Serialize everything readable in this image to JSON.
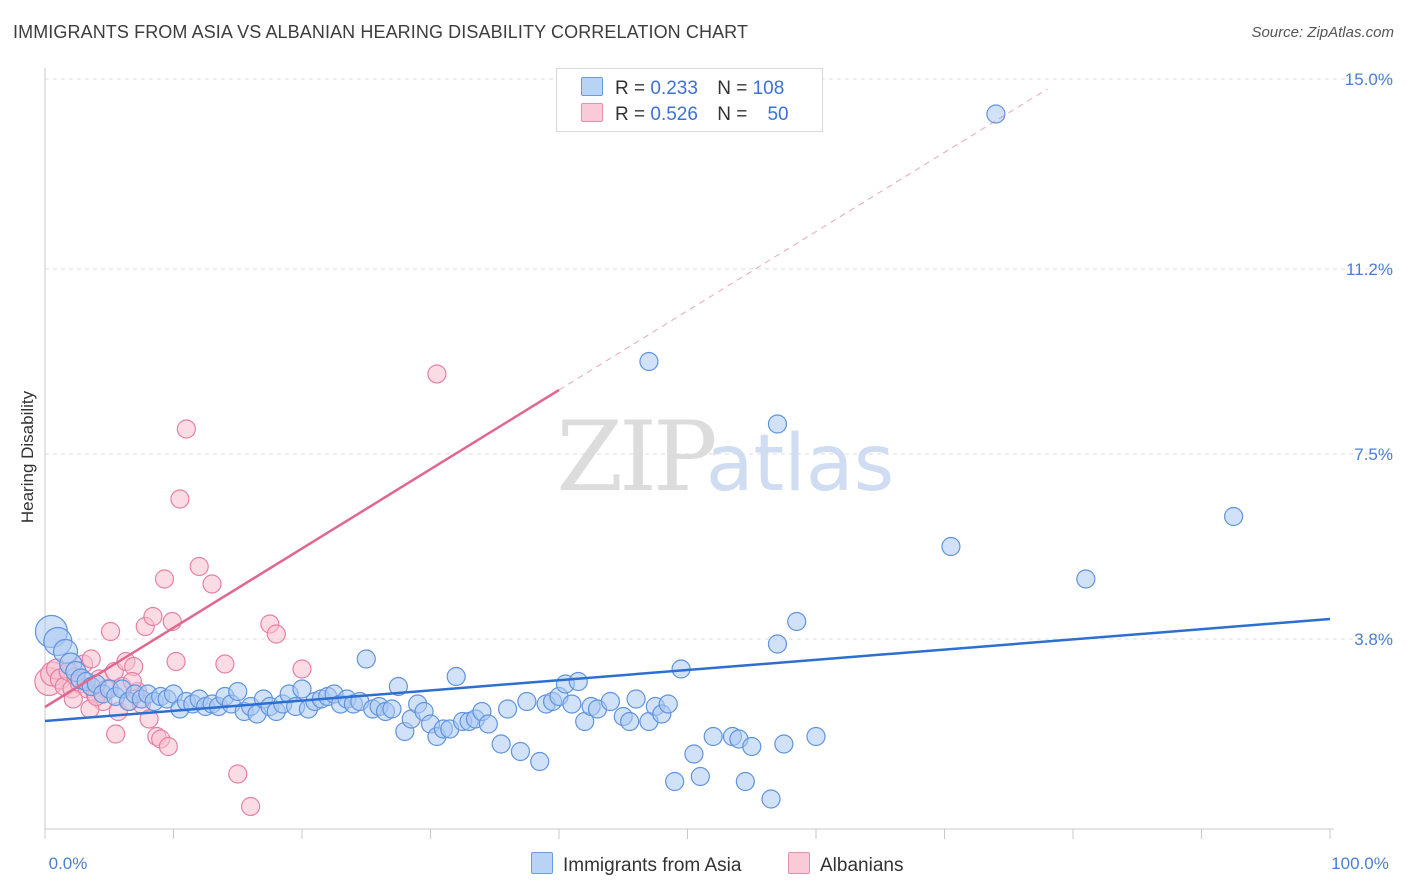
{
  "title": "IMMIGRANTS FROM ASIA VS ALBANIAN HEARING DISABILITY CORRELATION CHART",
  "source": "Source: ZipAtlas.com",
  "watermark": {
    "zip": "ZIP",
    "atlas": "atlas"
  },
  "legend": {
    "asia": {
      "r_label": "R =",
      "r_value": "0.233",
      "n_label": "N =",
      "n_value": "108"
    },
    "albanians": {
      "r_label": "R =",
      "r_value": "0.526",
      "n_label": "N =",
      "n_value": "50"
    }
  },
  "bottom_legend": {
    "asia": "Immigrants from Asia",
    "albanians": "Albanians"
  },
  "colors": {
    "asia_fill": "#a9c8f2",
    "asia_stroke": "#5f93dd",
    "asia_line": "#2c6fd0",
    "alb_fill": "#f7bfd0",
    "alb_stroke": "#e87fa3",
    "alb_line": "#e06890",
    "grid": "#dddddd",
    "tick_text": "#4a7fd0"
  },
  "chart_data": {
    "type": "scatter",
    "title": "IMMIGRANTS FROM ASIA VS ALBANIAN HEARING DISABILITY CORRELATION CHART",
    "xlabel": "",
    "ylabel": "Hearing Disability",
    "xlim": [
      0,
      100
    ],
    "ylim": [
      0,
      15.0
    ],
    "x_tick_labels": [
      "0.0%",
      "100.0%"
    ],
    "y_ticks": [
      3.8,
      7.5,
      11.2,
      15.0
    ],
    "y_tick_labels": [
      "3.8%",
      "7.5%",
      "11.2%",
      "15.0%"
    ],
    "grid": true,
    "legend_position": "top-center",
    "series": [
      {
        "name": "Immigrants from Asia",
        "r": 0.233,
        "n": 108,
        "trend": {
          "x": [
            0,
            100
          ],
          "y": [
            2.16,
            4.2
          ]
        },
        "points": [
          [
            0.5,
            3.95,
            16
          ],
          [
            1.0,
            3.75,
            14
          ],
          [
            1.6,
            3.55,
            12
          ],
          [
            2.0,
            3.3,
            11
          ],
          [
            2.4,
            3.15,
            10
          ],
          [
            2.8,
            3.0,
            10
          ],
          [
            3.2,
            2.95,
            9
          ],
          [
            3.6,
            2.85,
            9
          ],
          [
            4.0,
            2.9,
            9
          ],
          [
            4.5,
            2.7,
            9
          ],
          [
            5.0,
            2.8,
            9
          ],
          [
            5.5,
            2.65,
            9
          ],
          [
            6.0,
            2.8,
            9
          ],
          [
            6.5,
            2.55,
            9
          ],
          [
            7.0,
            2.7,
            9
          ],
          [
            7.5,
            2.6,
            9
          ],
          [
            8.0,
            2.7,
            9
          ],
          [
            8.5,
            2.55,
            9
          ],
          [
            9.0,
            2.65,
            9
          ],
          [
            9.5,
            2.6,
            9
          ],
          [
            10.0,
            2.7,
            9
          ],
          [
            10.5,
            2.4,
            9
          ],
          [
            11.0,
            2.55,
            9
          ],
          [
            11.5,
            2.5,
            9
          ],
          [
            12.0,
            2.6,
            9
          ],
          [
            12.5,
            2.45,
            9
          ],
          [
            13.0,
            2.5,
            9
          ],
          [
            13.5,
            2.45,
            9
          ],
          [
            14.0,
            2.65,
            9
          ],
          [
            14.5,
            2.5,
            9
          ],
          [
            15.0,
            2.75,
            9
          ],
          [
            15.5,
            2.35,
            9
          ],
          [
            16.0,
            2.45,
            9
          ],
          [
            16.5,
            2.3,
            9
          ],
          [
            17.0,
            2.6,
            9
          ],
          [
            17.5,
            2.45,
            9
          ],
          [
            18.0,
            2.35,
            9
          ],
          [
            18.5,
            2.5,
            9
          ],
          [
            19.0,
            2.7,
            9
          ],
          [
            19.5,
            2.45,
            9
          ],
          [
            20.0,
            2.8,
            9
          ],
          [
            20.5,
            2.4,
            9
          ],
          [
            21.0,
            2.55,
            9
          ],
          [
            21.5,
            2.6,
            9
          ],
          [
            22.0,
            2.65,
            9
          ],
          [
            22.5,
            2.7,
            9
          ],
          [
            23.0,
            2.5,
            9
          ],
          [
            23.5,
            2.6,
            9
          ],
          [
            24.0,
            2.5,
            9
          ],
          [
            24.5,
            2.55,
            9
          ],
          [
            25.0,
            3.4,
            9
          ],
          [
            25.5,
            2.4,
            9
          ],
          [
            26.0,
            2.45,
            9
          ],
          [
            26.5,
            2.35,
            9
          ],
          [
            27.0,
            2.4,
            9
          ],
          [
            27.5,
            2.85,
            9
          ],
          [
            28.0,
            1.95,
            9
          ],
          [
            28.5,
            2.2,
            9
          ],
          [
            29.0,
            2.5,
            9
          ],
          [
            29.5,
            2.35,
            9
          ],
          [
            30.0,
            2.1,
            9
          ],
          [
            30.5,
            1.85,
            9
          ],
          [
            31.0,
            2.0,
            9
          ],
          [
            31.5,
            2.0,
            9
          ],
          [
            32.0,
            3.05,
            9
          ],
          [
            32.5,
            2.15,
            9
          ],
          [
            33.0,
            2.15,
            9
          ],
          [
            33.5,
            2.2,
            9
          ],
          [
            34.0,
            2.35,
            9
          ],
          [
            34.5,
            2.1,
            9
          ],
          [
            35.5,
            1.7,
            9
          ],
          [
            36.0,
            2.4,
            9
          ],
          [
            37.0,
            1.55,
            9
          ],
          [
            37.5,
            2.55,
            9
          ],
          [
            38.5,
            1.35,
            9
          ],
          [
            39.0,
            2.5,
            9
          ],
          [
            39.5,
            2.55,
            9
          ],
          [
            40.0,
            2.65,
            9
          ],
          [
            40.5,
            2.9,
            9
          ],
          [
            41.0,
            2.5,
            9
          ],
          [
            41.5,
            2.95,
            9
          ],
          [
            42.0,
            2.15,
            9
          ],
          [
            42.5,
            2.45,
            9
          ],
          [
            43.0,
            2.4,
            9
          ],
          [
            44.0,
            2.55,
            9
          ],
          [
            45.0,
            2.25,
            9
          ],
          [
            45.5,
            2.15,
            9
          ],
          [
            46.0,
            2.6,
            9
          ],
          [
            47.0,
            2.15,
            9
          ],
          [
            47.5,
            2.45,
            9
          ],
          [
            48.0,
            2.3,
            9
          ],
          [
            48.5,
            2.5,
            9
          ],
          [
            49.0,
            0.95,
            9
          ],
          [
            49.5,
            3.2,
            9
          ],
          [
            50.5,
            1.5,
            9
          ],
          [
            51.0,
            1.05,
            9
          ],
          [
            52.0,
            1.85,
            9
          ],
          [
            53.5,
            1.85,
            9
          ],
          [
            54.0,
            1.8,
            9
          ],
          [
            54.5,
            0.95,
            9
          ],
          [
            55.0,
            1.65,
            9
          ],
          [
            56.5,
            0.6,
            9
          ],
          [
            57.0,
            3.7,
            9
          ],
          [
            57.5,
            1.7,
            9
          ],
          [
            58.5,
            4.15,
            9
          ],
          [
            70.5,
            5.65,
            9
          ],
          [
            81.0,
            5.0,
            9
          ],
          [
            92.5,
            6.25,
            9
          ],
          [
            74.0,
            14.3,
            9
          ],
          [
            47.0,
            9.35,
            9
          ],
          [
            57.0,
            8.1,
            9
          ],
          [
            60.0,
            1.85,
            9
          ]
        ]
      },
      {
        "name": "Albanians",
        "r": 0.526,
        "n": 50,
        "trend": {
          "x": [
            0,
            40
          ],
          "y": [
            2.44,
            8.78
          ]
        },
        "trend_dashed": {
          "x": [
            40,
            78
          ],
          "y": [
            8.78,
            14.8
          ]
        },
        "points": [
          [
            0.3,
            2.95,
            14
          ],
          [
            0.6,
            3.1,
            12
          ],
          [
            0.9,
            3.2,
            10
          ],
          [
            1.2,
            3.0,
            10
          ],
          [
            1.5,
            2.85,
            9
          ],
          [
            1.8,
            3.15,
            9
          ],
          [
            2.1,
            2.8,
            9
          ],
          [
            2.4,
            3.05,
            9
          ],
          [
            2.7,
            2.9,
            9
          ],
          [
            3.0,
            3.3,
            9
          ],
          [
            3.3,
            2.8,
            9
          ],
          [
            3.6,
            3.4,
            9
          ],
          [
            3.9,
            2.7,
            9
          ],
          [
            4.2,
            3.0,
            9
          ],
          [
            4.5,
            2.55,
            9
          ],
          [
            4.8,
            2.8,
            9
          ],
          [
            5.1,
            3.95,
            9
          ],
          [
            5.4,
            3.15,
            9
          ],
          [
            5.7,
            2.35,
            9
          ],
          [
            6.0,
            2.85,
            9
          ],
          [
            6.3,
            3.35,
            9
          ],
          [
            6.6,
            2.55,
            9
          ],
          [
            6.9,
            3.25,
            9
          ],
          [
            7.2,
            2.75,
            9
          ],
          [
            7.5,
            2.5,
            9
          ],
          [
            7.8,
            4.05,
            9
          ],
          [
            8.1,
            2.2,
            9
          ],
          [
            8.4,
            4.25,
            9
          ],
          [
            8.7,
            1.85,
            9
          ],
          [
            9.0,
            1.8,
            9
          ],
          [
            9.3,
            5.0,
            9
          ],
          [
            9.6,
            1.65,
            9
          ],
          [
            9.9,
            4.15,
            9
          ],
          [
            10.2,
            3.35,
            9
          ],
          [
            10.5,
            6.6,
            9
          ],
          [
            11.0,
            8.0,
            9
          ],
          [
            12.0,
            5.25,
            9
          ],
          [
            13.0,
            4.9,
            9
          ],
          [
            14.0,
            3.3,
            9
          ],
          [
            15.0,
            1.1,
            9
          ],
          [
            16.0,
            0.45,
            9
          ],
          [
            17.5,
            4.1,
            9
          ],
          [
            18.0,
            3.9,
            9
          ],
          [
            20.0,
            3.2,
            9
          ],
          [
            30.5,
            9.1,
            9
          ],
          [
            3.5,
            2.4,
            9
          ],
          [
            5.5,
            1.9,
            9
          ],
          [
            6.8,
            2.95,
            9
          ],
          [
            4.0,
            2.65,
            9
          ],
          [
            2.2,
            2.6,
            9
          ]
        ]
      }
    ]
  }
}
